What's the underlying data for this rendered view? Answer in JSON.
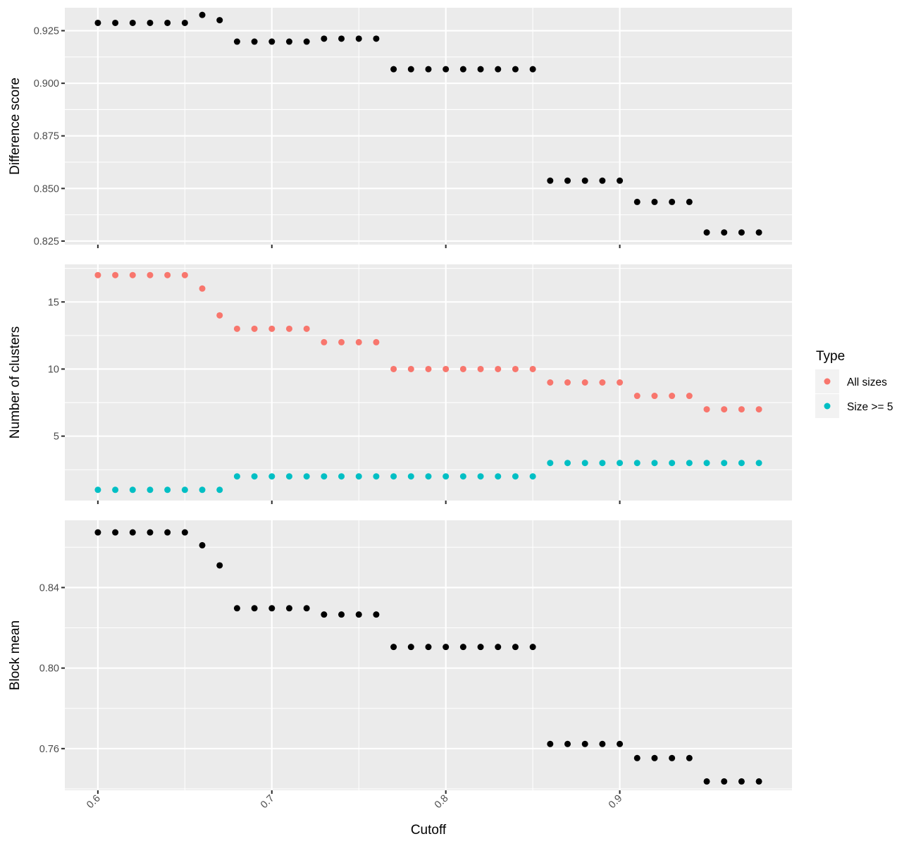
{
  "chart_data": {
    "type": "scatter",
    "xlabel": "Cutoff",
    "x_ticks": [
      "0.6",
      "0.7",
      "0.8",
      "0.9"
    ],
    "xlim": [
      0.581,
      0.999
    ],
    "grid": true,
    "legend": {
      "title": "Type",
      "placement": "right",
      "entries": [
        {
          "label": "All sizes",
          "color": "#F8766D"
        },
        {
          "label": "Size >= 5",
          "color": "#00BFC4"
        }
      ]
    },
    "x": [
      0.6,
      0.61,
      0.62,
      0.63,
      0.64,
      0.65,
      0.66,
      0.67,
      0.68,
      0.69,
      0.7,
      0.71,
      0.72,
      0.73,
      0.74,
      0.75,
      0.76,
      0.77,
      0.78,
      0.79,
      0.8,
      0.81,
      0.82,
      0.83,
      0.84,
      0.85,
      0.86,
      0.87,
      0.88,
      0.89,
      0.9,
      0.91,
      0.92,
      0.93,
      0.94,
      0.95,
      0.96,
      0.97,
      0.98
    ],
    "panels": [
      {
        "ylabel": "Difference score",
        "ylim": [
          0.8233,
          0.9359
        ],
        "y_ticks": [
          "0.825",
          "0.850",
          "0.875",
          "0.900",
          "0.925"
        ],
        "y_tick_values": [
          0.825,
          0.85,
          0.875,
          0.9,
          0.925
        ],
        "series": [
          {
            "color": "#000000",
            "values": [
              0.9287,
              0.9287,
              0.9287,
              0.9287,
              0.9287,
              0.9287,
              0.9325,
              0.93,
              0.9198,
              0.9198,
              0.9198,
              0.9198,
              0.9198,
              0.9212,
              0.9212,
              0.9212,
              0.9212,
              0.9067,
              0.9067,
              0.9067,
              0.9067,
              0.9067,
              0.9067,
              0.9067,
              0.9067,
              0.9067,
              0.8537,
              0.8537,
              0.8537,
              0.8537,
              0.8537,
              0.8436,
              0.8436,
              0.8436,
              0.8436,
              0.8291,
              0.8291,
              0.8291,
              0.8291
            ]
          }
        ]
      },
      {
        "ylabel": "Number of clusters",
        "ylim": [
          0.2,
          17.8
        ],
        "y_ticks": [
          "5",
          "10",
          "15"
        ],
        "y_tick_values": [
          5,
          10,
          15
        ],
        "series": [
          {
            "name": "All sizes",
            "color": "#F8766D",
            "values": [
              17,
              17,
              17,
              17,
              17,
              17,
              16,
              14,
              13,
              13,
              13,
              13,
              13,
              12,
              12,
              12,
              12,
              10,
              10,
              10,
              10,
              10,
              10,
              10,
              10,
              10,
              9,
              9,
              9,
              9,
              9,
              8,
              8,
              8,
              8,
              7,
              7,
              7,
              7
            ]
          },
          {
            "name": "Size >= 5",
            "color": "#00BFC4",
            "values": [
              1,
              1,
              1,
              1,
              1,
              1,
              1,
              1,
              2,
              2,
              2,
              2,
              2,
              2,
              2,
              2,
              2,
              2,
              2,
              2,
              2,
              2,
              2,
              2,
              2,
              2,
              3,
              3,
              3,
              3,
              3,
              3,
              3,
              3,
              3,
              3,
              3,
              3,
              3
            ]
          }
        ]
      },
      {
        "ylabel": "Block mean",
        "ylim": [
          0.7393,
          0.8734
        ],
        "y_ticks": [
          "0.76",
          "0.80",
          "0.84"
        ],
        "y_tick_values": [
          0.76,
          0.8,
          0.84
        ],
        "series": [
          {
            "color": "#000000",
            "values": [
              0.8674,
              0.8674,
              0.8674,
              0.8674,
              0.8674,
              0.8674,
              0.861,
              0.851,
              0.8297,
              0.8297,
              0.8297,
              0.8297,
              0.8297,
              0.8266,
              0.8266,
              0.8266,
              0.8266,
              0.8105,
              0.8105,
              0.8105,
              0.8105,
              0.8105,
              0.8105,
              0.8105,
              0.8105,
              0.8105,
              0.7623,
              0.7623,
              0.7623,
              0.7623,
              0.7623,
              0.7553,
              0.7553,
              0.7553,
              0.7553,
              0.7437,
              0.7437,
              0.7437,
              0.7437
            ]
          }
        ]
      }
    ]
  }
}
